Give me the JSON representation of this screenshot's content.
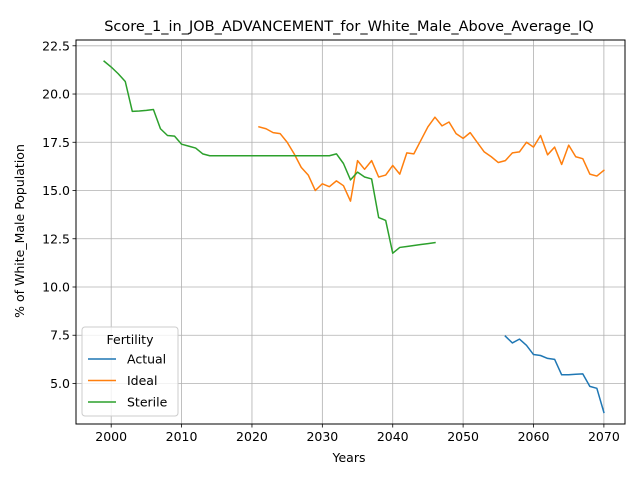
{
  "chart_data": {
    "type": "line",
    "title": "Score_1_in_JOB_ADVANCEMENT_for_White_Male_Above_Average_IQ",
    "xlabel": "Years",
    "ylabel": "% of White_Male Population",
    "xlim": [
      1995,
      2073
    ],
    "ylim": [
      2.9,
      22.8
    ],
    "xticks": [
      2000,
      2010,
      2020,
      2030,
      2040,
      2050,
      2060,
      2070
    ],
    "yticks": [
      5.0,
      7.5,
      10.0,
      12.5,
      15.0,
      17.5,
      20.0,
      22.5
    ],
    "xtick_labels": [
      "2000",
      "2010",
      "2020",
      "2030",
      "2040",
      "2050",
      "2060",
      "2070"
    ],
    "ytick_labels": [
      "5.0",
      "7.5",
      "10.0",
      "12.5",
      "15.0",
      "17.5",
      "20.0",
      "22.5"
    ],
    "grid": true,
    "legend": {
      "title": "Fertility",
      "placement": "lower-left"
    },
    "series": [
      {
        "name": "Actual",
        "color": "#1f77b4",
        "x": [
          2056,
          2057,
          2058,
          2059,
          2060,
          2061,
          2062,
          2063,
          2064,
          2065,
          2066,
          2067,
          2068,
          2069,
          2070
        ],
        "y": [
          7.45,
          7.1,
          7.3,
          6.98,
          6.5,
          6.45,
          6.3,
          6.25,
          5.45,
          5.45,
          5.48,
          5.5,
          4.85,
          4.75,
          3.5
        ]
      },
      {
        "name": "Ideal",
        "color": "#ff7f0e",
        "x": [
          2021,
          2022,
          2023,
          2024,
          2025,
          2026,
          2027,
          2028,
          2029,
          2030,
          2031,
          2032,
          2033,
          2034,
          2035,
          2036,
          2037,
          2038,
          2039,
          2040,
          2041,
          2042,
          2043,
          2044,
          2045,
          2046,
          2047,
          2048,
          2049,
          2050,
          2051,
          2052,
          2053,
          2054,
          2055,
          2056,
          2057,
          2058,
          2059,
          2060,
          2061,
          2062,
          2063,
          2064,
          2065,
          2066,
          2067,
          2068,
          2069,
          2070
        ],
        "y": [
          18.3,
          18.2,
          18.0,
          17.95,
          17.5,
          16.9,
          16.2,
          15.8,
          15.0,
          15.35,
          15.2,
          15.5,
          15.25,
          14.45,
          16.55,
          16.1,
          16.55,
          15.7,
          15.8,
          16.3,
          15.85,
          16.95,
          16.9,
          17.6,
          18.3,
          18.8,
          18.35,
          18.55,
          17.95,
          17.7,
          18.0,
          17.5,
          17.0,
          16.75,
          16.45,
          16.55,
          16.95,
          17.0,
          17.5,
          17.25,
          17.85,
          16.85,
          17.25,
          16.35,
          17.35,
          16.75,
          16.65,
          15.85,
          15.75,
          16.05
        ]
      },
      {
        "name": "Sterile",
        "color": "#2ca02c",
        "x": [
          1999,
          2000,
          2001,
          2002,
          2003,
          2004,
          2005,
          2006,
          2007,
          2008,
          2009,
          2010,
          2011,
          2012,
          2013,
          2014,
          2015,
          2016,
          2017,
          2018,
          2019,
          2020,
          2021,
          2022,
          2023,
          2024,
          2025,
          2026,
          2027,
          2028,
          2029,
          2030,
          2031,
          2032,
          2033,
          2034,
          2035,
          2036,
          2037,
          2038,
          2039,
          2040,
          2041,
          2042,
          2043,
          2044,
          2045,
          2046
        ],
        "y": [
          21.7,
          21.4,
          21.05,
          20.65,
          19.1,
          19.12,
          19.15,
          19.2,
          18.2,
          17.85,
          17.82,
          17.4,
          17.3,
          17.2,
          16.9,
          16.8,
          16.8,
          16.8,
          16.8,
          16.8,
          16.8,
          16.8,
          16.8,
          16.8,
          16.8,
          16.8,
          16.8,
          16.8,
          16.8,
          16.8,
          16.8,
          16.8,
          16.8,
          16.9,
          16.4,
          15.55,
          15.95,
          15.7,
          15.6,
          13.6,
          13.45,
          11.75,
          12.05,
          12.1,
          12.15,
          12.2,
          12.25,
          12.3
        ]
      }
    ]
  }
}
